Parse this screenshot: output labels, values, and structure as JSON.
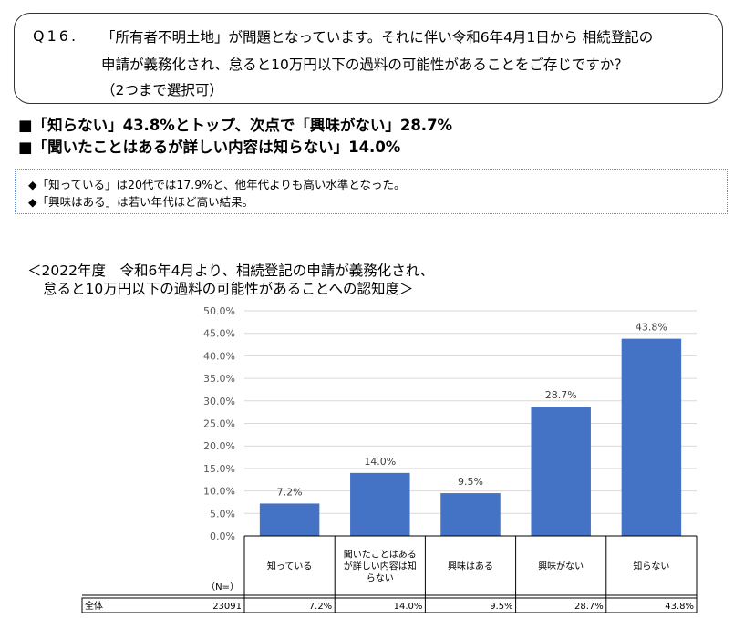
{
  "question": {
    "number": "Q16.",
    "line1": "「所有者不明土地」が問題となっています。それに伴い令和6年4月1日から 相続登記の",
    "line2": "申請が義務化され、怠ると10万円以下の過料の可能性があることをご存じですか？",
    "line3": "（2つまで選択可）"
  },
  "headlines": {
    "line1": "■「知らない」43.8%とトップ、次点で「興味がない」28.7%",
    "line2": "■「聞いたことはあるが詳しい内容は知らない」14.0%"
  },
  "notes": {
    "line1": "◆「知っている」は20代では17.9%と、他年代よりも高い水準となった。",
    "line2": "◆「興味はある」は若い年代ほど高い結果。"
  },
  "chart_data": {
    "type": "bar",
    "title_line1": "＜2022年度　令和6年4月より、相続登記の申請が義務化され、",
    "title_line2": "怠ると10万円以下の過料の可能性があることへの認知度＞",
    "categories": [
      "知っている",
      "聞いたことはあるが詳しい内容は知らない",
      "興味はある",
      "興味がない",
      "知らない"
    ],
    "category_lines": [
      [
        "知っている"
      ],
      [
        "聞いたことはある",
        "が詳しい内容は知",
        "らない"
      ],
      [
        "興味はある"
      ],
      [
        "興味がない"
      ],
      [
        "知らない"
      ]
    ],
    "values": [
      7.2,
      14.0,
      9.5,
      28.7,
      43.8
    ],
    "data_labels": [
      "7.2%",
      "14.0%",
      "9.5%",
      "28.7%",
      "43.8%"
    ],
    "ylim": [
      0,
      50
    ],
    "y_ticks": [
      "0.0%",
      "5.0%",
      "10.0%",
      "15.0%",
      "20.0%",
      "25.0%",
      "30.0%",
      "35.0%",
      "40.0%",
      "45.0%",
      "50.0%"
    ],
    "grid": true,
    "bar_color": "#4472C4",
    "table": {
      "n_header": "（N=）",
      "row_label": "全体",
      "n_value": "23091",
      "cells": [
        "7.2%",
        "14.0%",
        "9.5%",
        "28.7%",
        "43.8%"
      ]
    }
  }
}
